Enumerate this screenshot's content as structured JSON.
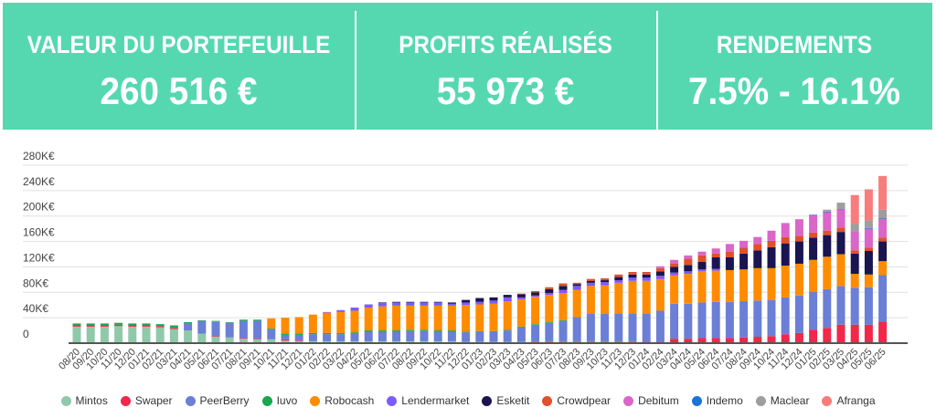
{
  "kpis": [
    {
      "title": "VALEUR DU PORTEFEUILLE",
      "value": "260 516 €"
    },
    {
      "title": "PROFITS RÉALISÉS",
      "value": "55 973 €"
    },
    {
      "title": "RENDEMENTS",
      "value": "7.5% - 16.1%"
    }
  ],
  "colors": {
    "header": "#55d8b0",
    "axis": "#555555",
    "grid": "#e0e0e0"
  },
  "chart_data": {
    "type": "bar",
    "stacked": true,
    "ylim": [
      0,
      280
    ],
    "yticks": [
      0,
      40,
      80,
      120,
      160,
      200,
      240,
      280
    ],
    "ytick_labels": [
      "0",
      "40K€",
      "80K€",
      "120K€",
      "160K€",
      "200K€",
      "240K€",
      "280K€"
    ],
    "grid": true,
    "legend_position": "bottom",
    "categories": [
      "08/20",
      "09/20",
      "10/20",
      "11/20",
      "12/20",
      "01/21",
      "02/21",
      "03/21",
      "04/21",
      "05/21",
      "06/21",
      "07/21",
      "08/21",
      "09/21",
      "10/21",
      "11/21",
      "12/21",
      "01/22",
      "02/22",
      "03/22",
      "04/22",
      "05/22",
      "06/22",
      "07/22",
      "08/22",
      "09/22",
      "10/22",
      "11/22",
      "12/22",
      "01/23",
      "02/23",
      "03/23",
      "04/23",
      "05/23",
      "06/23",
      "07/23",
      "08/23",
      "09/23",
      "10/23",
      "11/23",
      "12/23",
      "01/24",
      "02/24",
      "03/24",
      "04/24",
      "05/24",
      "06/24",
      "07/24",
      "08/24",
      "09/24",
      "10/24",
      "11/24",
      "12/24",
      "01/25",
      "02/25",
      "03/25",
      "04/25",
      "05/25",
      "06/25"
    ],
    "unit": "K€",
    "series": [
      {
        "name": "Mintos",
        "color": "#8fc9a9",
        "values": [
          26,
          26,
          26,
          27,
          26,
          26,
          25,
          22,
          20,
          15,
          10,
          9,
          7,
          6,
          6,
          4,
          3,
          3,
          3,
          3,
          3,
          3,
          3,
          3,
          3,
          3,
          3,
          3,
          2,
          2,
          2,
          2,
          2,
          2,
          2,
          2,
          2,
          2,
          2,
          2,
          2,
          1,
          1,
          1,
          1,
          1,
          1,
          1,
          1,
          1,
          1,
          1,
          1,
          1,
          1,
          1,
          1,
          1,
          1
        ]
      },
      {
        "name": "Swaper",
        "color": "#f0284a",
        "values": [
          2,
          2,
          2,
          2,
          2,
          2,
          2,
          2,
          0,
          0,
          1,
          0,
          1,
          1,
          0,
          2,
          1,
          0,
          0,
          0,
          0,
          0,
          0,
          0,
          0,
          0,
          0,
          0,
          0,
          0,
          0,
          0,
          0,
          1,
          1,
          1,
          1,
          1,
          1,
          1,
          1,
          1,
          1,
          6,
          6,
          7,
          7,
          7,
          8,
          9,
          10,
          13,
          15,
          20,
          23,
          28,
          28,
          28,
          33
        ]
      },
      {
        "name": "PeerBerry",
        "color": "#6b7fd6",
        "values": [
          0,
          0,
          0,
          0,
          0,
          0,
          0,
          0,
          11,
          20,
          23,
          23,
          27,
          28,
          16,
          7,
          9,
          11,
          11,
          11,
          12,
          15,
          15,
          15,
          16,
          16,
          15,
          15,
          15,
          16,
          16,
          18,
          23,
          26,
          29,
          32,
          38,
          43,
          43,
          44,
          44,
          45,
          49,
          55,
          55,
          56,
          57,
          57,
          57,
          57,
          57,
          58,
          59,
          60,
          61,
          61,
          58,
          59,
          73
        ]
      },
      {
        "name": "Iuvo",
        "color": "#1aa84f",
        "values": [
          3,
          3,
          3,
          3,
          3,
          3,
          3,
          4,
          2,
          1,
          1,
          1,
          2,
          2,
          1,
          2,
          2,
          2,
          2,
          2,
          2,
          2,
          2,
          2,
          2,
          2,
          2,
          2,
          1,
          1,
          1,
          1,
          1,
          1,
          1,
          1,
          0,
          0,
          0,
          0,
          0,
          0,
          0,
          0,
          0,
          0,
          0,
          0,
          0,
          0,
          0,
          0,
          0,
          0,
          0,
          0,
          0,
          0,
          0
        ]
      },
      {
        "name": "Robocash",
        "color": "#ff8c00",
        "values": [
          0,
          0,
          0,
          0,
          0,
          0,
          0,
          0,
          0,
          0,
          0,
          0,
          0,
          0,
          16,
          25,
          26,
          29,
          32,
          33,
          34,
          36,
          38,
          39,
          38,
          38,
          39,
          39,
          42,
          42,
          43,
          45,
          43,
          43,
          43,
          43,
          43,
          44,
          45,
          48,
          51,
          51,
          50,
          45,
          47,
          49,
          49,
          50,
          50,
          51,
          50,
          50,
          50,
          50,
          51,
          50,
          22,
          20,
          22
        ]
      },
      {
        "name": "Lendermarket",
        "color": "#7b5cff",
        "values": [
          0,
          0,
          0,
          0,
          0,
          0,
          0,
          0,
          0,
          0,
          0,
          0,
          0,
          0,
          0,
          0,
          0,
          0,
          1,
          3,
          5,
          5,
          5,
          5,
          5,
          5,
          5,
          3,
          4,
          4,
          5,
          6,
          3,
          2,
          3,
          5,
          6,
          5,
          5,
          4,
          5,
          5,
          5,
          4,
          4,
          3,
          3,
          0,
          0,
          0,
          0,
          0,
          0,
          0,
          0,
          0,
          0,
          0,
          0
        ]
      },
      {
        "name": "Esketit",
        "color": "#1a1450",
        "values": [
          0,
          0,
          0,
          0,
          0,
          0,
          0,
          0,
          0,
          0,
          0,
          0,
          0,
          0,
          0,
          0,
          0,
          0,
          0,
          0,
          0,
          0,
          1,
          1,
          1,
          1,
          1,
          2,
          4,
          6,
          5,
          4,
          5,
          5,
          6,
          6,
          3,
          3,
          3,
          5,
          5,
          5,
          7,
          9,
          10,
          12,
          18,
          20,
          25,
          28,
          33,
          35,
          35,
          35,
          34,
          35,
          32,
          37,
          31
        ]
      },
      {
        "name": "Crowdpear",
        "color": "#e0502a",
        "values": [
          0,
          0,
          0,
          0,
          0,
          0,
          0,
          0,
          0,
          0,
          0,
          0,
          0,
          0,
          0,
          0,
          0,
          0,
          0,
          0,
          0,
          0,
          0,
          0,
          0,
          0,
          0,
          0,
          0,
          0,
          0,
          0,
          1,
          2,
          3,
          4,
          2,
          3,
          3,
          4,
          4,
          4,
          5,
          5,
          10,
          10,
          6,
          9,
          9,
          10,
          10,
          10,
          9,
          8,
          7,
          7,
          5,
          5,
          6
        ]
      },
      {
        "name": "Debitum",
        "color": "#d966c8",
        "values": [
          0,
          0,
          0,
          0,
          0,
          0,
          0,
          0,
          0,
          0,
          0,
          0,
          0,
          0,
          0,
          0,
          0,
          0,
          0,
          0,
          0,
          0,
          0,
          0,
          0,
          0,
          0,
          0,
          0,
          0,
          0,
          0,
          0,
          0,
          0,
          0,
          0,
          0,
          0,
          0,
          0,
          0,
          3,
          6,
          5,
          6,
          8,
          12,
          11,
          11,
          16,
          22,
          26,
          27,
          29,
          28,
          30,
          30,
          29
        ]
      },
      {
        "name": "Indemo",
        "color": "#1a73d9",
        "values": [
          0,
          0,
          0,
          0,
          0,
          0,
          0,
          0,
          0,
          0,
          0,
          0,
          0,
          0,
          0,
          0,
          0,
          0,
          0,
          0,
          0,
          0,
          0,
          0,
          0,
          0,
          0,
          0,
          0,
          0,
          0,
          0,
          0,
          0,
          0,
          0,
          0,
          0,
          0,
          0,
          0,
          0,
          0,
          0,
          0,
          0,
          0,
          0,
          0,
          0,
          0,
          0,
          0,
          1,
          1,
          1,
          0,
          1,
          1
        ]
      },
      {
        "name": "Maclear",
        "color": "#9e9e9e",
        "values": [
          0,
          0,
          0,
          0,
          0,
          0,
          0,
          0,
          0,
          0,
          0,
          0,
          0,
          0,
          0,
          0,
          0,
          0,
          0,
          0,
          0,
          0,
          0,
          0,
          0,
          0,
          0,
          0,
          0,
          0,
          0,
          0,
          0,
          0,
          0,
          0,
          0,
          0,
          0,
          0,
          0,
          0,
          0,
          0,
          0,
          0,
          0,
          0,
          0,
          0,
          0,
          0,
          0,
          0,
          3,
          10,
          12,
          12,
          14
        ]
      },
      {
        "name": "Afranga",
        "color": "#f87c7c",
        "values": [
          0,
          0,
          0,
          0,
          0,
          0,
          0,
          0,
          0,
          0,
          0,
          0,
          0,
          0,
          0,
          0,
          0,
          0,
          0,
          0,
          0,
          0,
          0,
          0,
          0,
          0,
          0,
          0,
          0,
          0,
          0,
          0,
          0,
          0,
          0,
          0,
          0,
          0,
          0,
          0,
          0,
          0,
          0,
          0,
          0,
          0,
          0,
          0,
          0,
          0,
          0,
          0,
          0,
          0,
          0,
          0,
          45,
          49,
          53
        ]
      }
    ]
  }
}
